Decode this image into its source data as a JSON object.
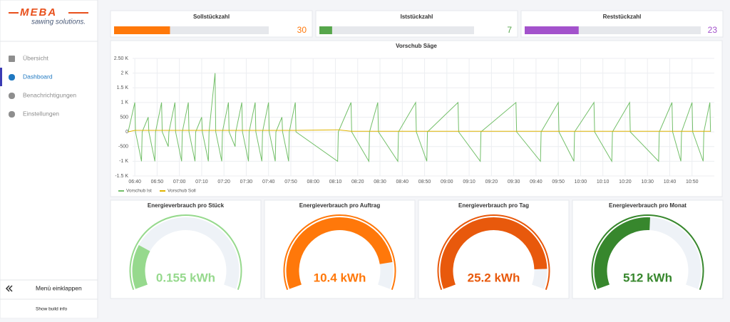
{
  "sidebar": {
    "logo": "MEBA",
    "tagline": "sawing solutions.",
    "nav": [
      "Übersicht",
      "Dashboard",
      "Benachrichtigungen",
      "Einstellungen"
    ],
    "active": 1,
    "collapse": "Menü einklappen",
    "build_info": "Show build info"
  },
  "stats": [
    {
      "title": "Sollstückzahl",
      "value": 30,
      "color": "#ff780a",
      "range": [
        0,
        83
      ]
    },
    {
      "title": "Iststückzahl",
      "value": 7,
      "color": "#56a64b",
      "range": [
        0,
        85
      ]
    },
    {
      "title": "Reststückzahl",
      "value": 23,
      "color": "#a352cc",
      "range": [
        0,
        75
      ]
    }
  ],
  "chart_data": {
    "type": "line",
    "title": "Vorschub Säge",
    "x": [
      397,
      400,
      400.3,
      403,
      403.3,
      406,
      406.3,
      409,
      409.3,
      412,
      412.3,
      415,
      415.3,
      418,
      418.3,
      421,
      421.3,
      424,
      424.3,
      427,
      427.3,
      430,
      430.3,
      433,
      433.3,
      436,
      436.3,
      439,
      439.3,
      442,
      442.3,
      445,
      445.3,
      448,
      448.3,
      451,
      451.3,
      454,
      454.3,
      457,
      457.3,
      460,
      460.3,
      463,
      463.3,
      466,
      466.3,
      469,
      469.3,
      472,
      472.3,
      491,
      491.3,
      497,
      497.3,
      505,
      505.3,
      509,
      509.3,
      518,
      518.3,
      526,
      526.3,
      531,
      531.3,
      545,
      545.3,
      555,
      555.3,
      571,
      571.3,
      582,
      582.3,
      590,
      590.3,
      597,
      597.3,
      606,
      606.3,
      614,
      614.3,
      622,
      622.3,
      635,
      635.3,
      641,
      641.3,
      645,
      645.3,
      650,
      650.3,
      655,
      655.3,
      658,
      658.3
    ],
    "series": [
      {
        "name": "Vorschub Ist",
        "color": "#73bf69",
        "values": [
          0,
          1000,
          0,
          -1000,
          0,
          500,
          0,
          -1000,
          0,
          1000,
          0,
          -500,
          0,
          1000,
          0,
          -1000,
          0,
          1000,
          0,
          -1000,
          0,
          500,
          0,
          -1000,
          0,
          2000,
          0,
          -1000,
          0,
          1000,
          0,
          -500,
          0,
          1000,
          0,
          -1000,
          0,
          1000,
          0,
          -1000,
          0,
          1000,
          0,
          -1000,
          0,
          500,
          0,
          -1000,
          0,
          1000,
          0,
          -1000,
          0,
          1000,
          0,
          -1000,
          0,
          1000,
          0,
          -1000,
          0,
          1000,
          0,
          -1000,
          0,
          1000,
          0,
          -1000,
          0,
          1000,
          0,
          -1000,
          0,
          1000,
          0,
          -1000,
          0,
          1000,
          0,
          -1000,
          0,
          1000,
          0,
          -1000,
          0,
          1000,
          0,
          -1000,
          0,
          1000,
          0,
          -1000,
          0,
          1000,
          0
        ]
      },
      {
        "name": "Vorschub Soll",
        "color": "#e0b400",
        "values": [
          0,
          50,
          50,
          50,
          50,
          50,
          50,
          50,
          50,
          50,
          50,
          50,
          50,
          50,
          50,
          50,
          50,
          50,
          50,
          50,
          50,
          50,
          50,
          50,
          50,
          50,
          50,
          50,
          50,
          50,
          50,
          50,
          50,
          50,
          50,
          50,
          50,
          50,
          50,
          50,
          50,
          50,
          50,
          50,
          50,
          50,
          50,
          50,
          50,
          50,
          50,
          70,
          70,
          20,
          20,
          20,
          20,
          20,
          20,
          20,
          20,
          20,
          20,
          20,
          20,
          20,
          20,
          20,
          20,
          20,
          20,
          20,
          20,
          20,
          20,
          20,
          20,
          20,
          20,
          20,
          20,
          20,
          20,
          20,
          20,
          20,
          20,
          20,
          20,
          20,
          20,
          20,
          20,
          20,
          20
        ]
      }
    ],
    "xlim": [
      399,
      660
    ],
    "xticks": [
      {
        "value": 400,
        "label": "06:40"
      },
      {
        "value": 410,
        "label": "06:50"
      },
      {
        "value": 420,
        "label": "07:00"
      },
      {
        "value": 430,
        "label": "07:10"
      },
      {
        "value": 440,
        "label": "07:20"
      },
      {
        "value": 450,
        "label": "07:30"
      },
      {
        "value": 460,
        "label": "07:40"
      },
      {
        "value": 470,
        "label": "07:50"
      },
      {
        "value": 480,
        "label": "08:00"
      },
      {
        "value": 490,
        "label": "08:10"
      },
      {
        "value": 500,
        "label": "08:20"
      },
      {
        "value": 510,
        "label": "08:30"
      },
      {
        "value": 520,
        "label": "08:40"
      },
      {
        "value": 530,
        "label": "08:50"
      },
      {
        "value": 540,
        "label": "09:00"
      },
      {
        "value": 550,
        "label": "09:10"
      },
      {
        "value": 560,
        "label": "09:20"
      },
      {
        "value": 570,
        "label": "09:30"
      },
      {
        "value": 580,
        "label": "09:40"
      },
      {
        "value": 590,
        "label": "09:50"
      },
      {
        "value": 600,
        "label": "10:00"
      },
      {
        "value": 610,
        "label": "10:10"
      },
      {
        "value": 620,
        "label": "10:20"
      },
      {
        "value": 630,
        "label": "10:30"
      },
      {
        "value": 640,
        "label": "10:40"
      },
      {
        "value": 650,
        "label": "10:50"
      }
    ],
    "ylim": [
      -1500,
      2500
    ],
    "yticks": [
      {
        "value": -1500,
        "label": "-1.5 K"
      },
      {
        "value": -1000,
        "label": "-1 K"
      },
      -500,
      0,
      500,
      {
        "value": 1000,
        "label": "1 K"
      },
      {
        "value": 1500,
        "label": "1.5 K"
      },
      {
        "value": 2000,
        "label": "2 K"
      },
      {
        "value": 2500,
        "label": "2.50 K"
      }
    ],
    "grid": true
  },
  "gauges": [
    {
      "title": "Energieverbrauch pro Stück",
      "value": 0.155,
      "value_label": "0.155 kWh",
      "color": "#96d98d",
      "range": [
        0,
        0.7
      ]
    },
    {
      "title": "Energieverbrauch pro Auftrag",
      "value": 10.4,
      "value_label": "10.4 kWh",
      "color": "#ff780a",
      "range": [
        0,
        12
      ]
    },
    {
      "title": "Energieverbrauch pro Tag",
      "value": 25.2,
      "value_label": "25.2 kWh",
      "color": "#e8590c",
      "range": [
        0,
        28
      ]
    },
    {
      "title": "Energieverbrauch pro Monat",
      "value": 512,
      "value_label": "512 kWh",
      "color": "#37872d",
      "range": [
        0,
        1000
      ]
    }
  ]
}
